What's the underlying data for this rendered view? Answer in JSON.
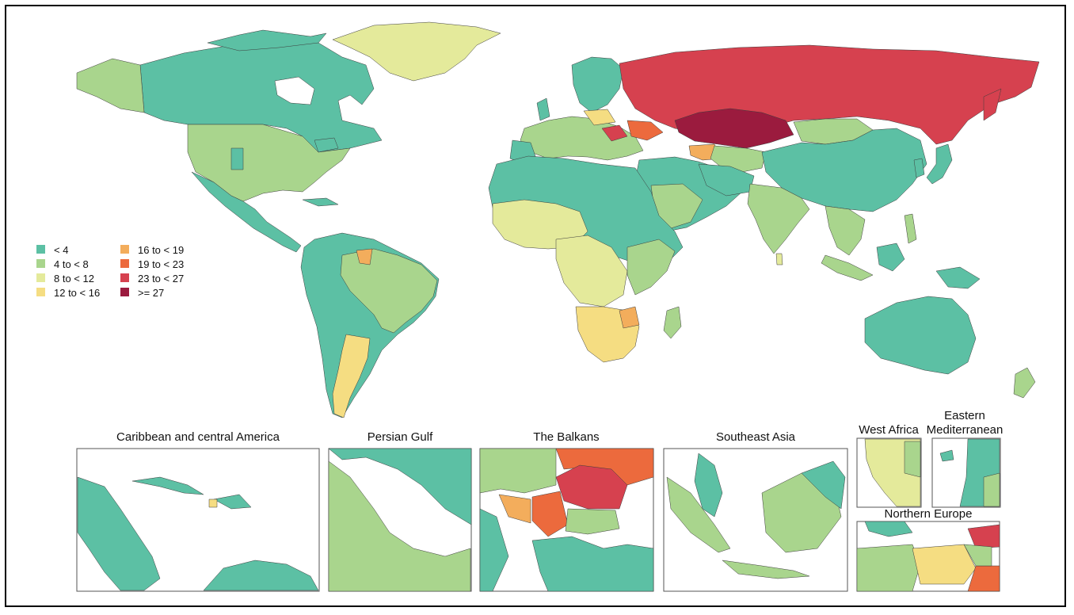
{
  "colors": {
    "c1": "#5cc0a4",
    "c2": "#a9d58d",
    "c3": "#e4ea9b",
    "c4": "#f5dd82",
    "c5": "#f3ad5c",
    "c6": "#ec6a3d",
    "c7": "#d6414f",
    "c8": "#9b1b3e"
  },
  "legend": [
    {
      "label": "< 4",
      "color": "#5cc0a4"
    },
    {
      "label": "4 to < 8",
      "color": "#a9d58d"
    },
    {
      "label": "8 to < 12",
      "color": "#e4ea9b"
    },
    {
      "label": "12 to < 16",
      "color": "#f5dd82"
    },
    {
      "label": "16 to < 19",
      "color": "#f3ad5c"
    },
    {
      "label": "19 to < 23",
      "color": "#ec6a3d"
    },
    {
      "label": "23 to < 27",
      "color": "#d6414f"
    },
    {
      "label": ">= 27",
      "color": "#9b1b3e"
    }
  ],
  "insets": {
    "caribbean": "Caribbean and central America",
    "persian_gulf": "Persian Gulf",
    "balkans": "The Balkans",
    "southeast_asia": "Southeast Asia",
    "west_africa": "West Africa",
    "eastern_med_1": "Eastern",
    "eastern_med_2": "Mediterranean",
    "northern_europe": "Northern Europe"
  }
}
